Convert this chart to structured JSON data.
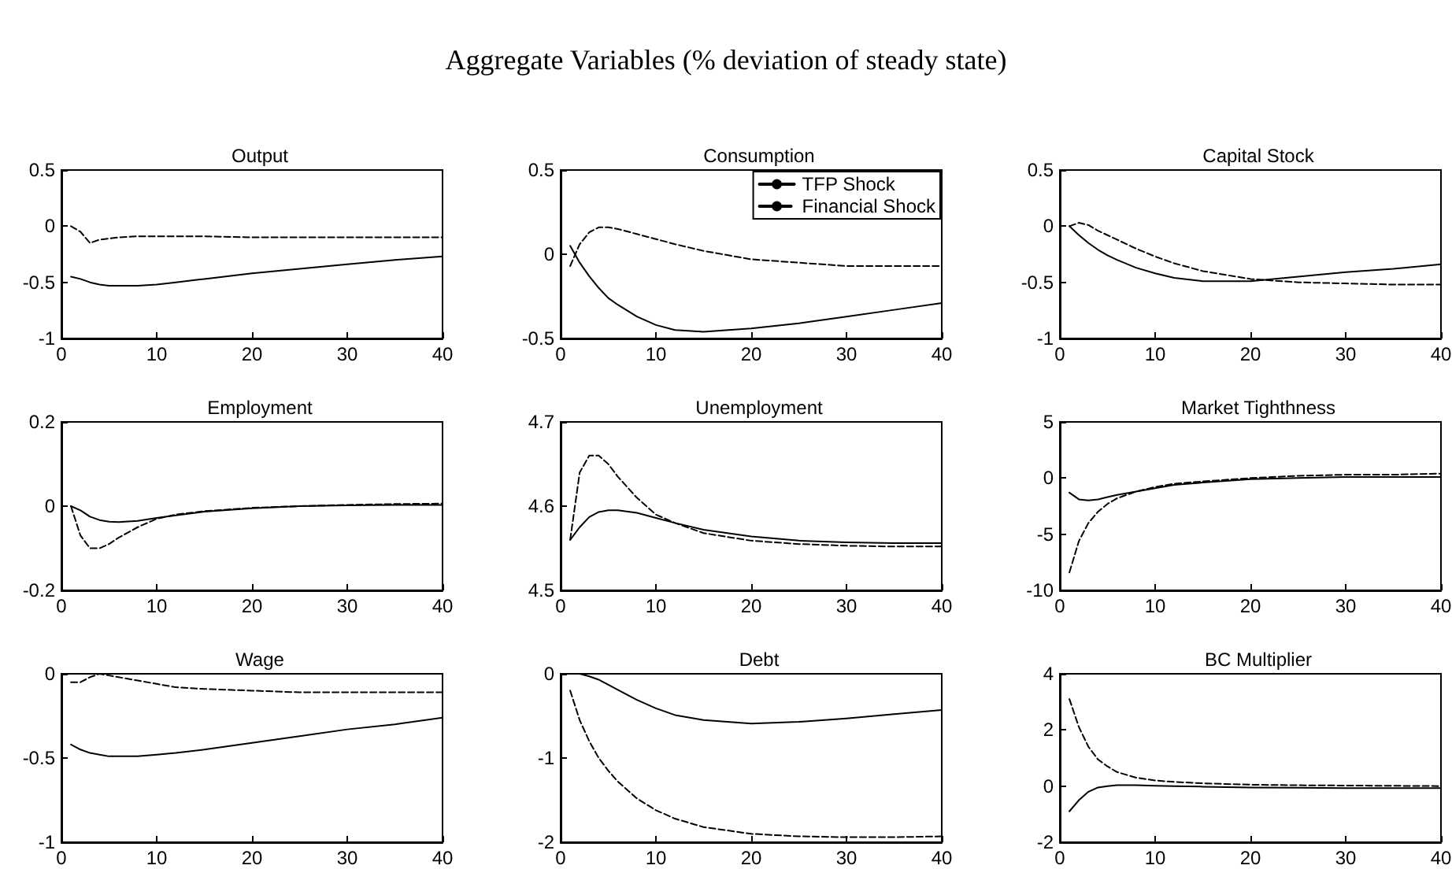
{
  "chart_data": [
    {
      "type": "line",
      "title": "Output",
      "annotations": [
        "Aggregate Variables (% deviation of steady state)"
      ],
      "x": [
        1,
        2,
        3,
        4,
        5,
        6,
        8,
        10,
        12,
        15,
        20,
        25,
        30,
        35,
        40
      ],
      "xlim": [
        0,
        40
      ],
      "xticks": [
        0,
        10,
        20,
        30,
        40
      ],
      "ylim": [
        -1,
        0.5
      ],
      "yticks": [
        -1,
        -0.5,
        0,
        0.5
      ],
      "grid": false,
      "legend": false,
      "marker": "none",
      "series": [
        {
          "color": "#000000",
          "line_style": "solid",
          "values": [
            -0.45,
            -0.47,
            -0.5,
            -0.52,
            -0.53,
            -0.53,
            -0.53,
            -0.52,
            -0.5,
            -0.47,
            -0.42,
            -0.38,
            -0.34,
            -0.3,
            -0.27
          ]
        },
        {
          "color": "#000000",
          "line_style": "dashed",
          "values": [
            0,
            -0.05,
            -0.15,
            -0.12,
            -0.11,
            -0.1,
            -0.09,
            -0.09,
            -0.09,
            -0.09,
            -0.1,
            -0.1,
            -0.1,
            -0.1,
            -0.1
          ]
        }
      ]
    },
    {
      "type": "line",
      "title": "Consumption",
      "x": [
        1,
        2,
        3,
        4,
        5,
        6,
        8,
        10,
        12,
        15,
        20,
        25,
        30,
        35,
        40
      ],
      "xlim": [
        0,
        40
      ],
      "xticks": [
        0,
        10,
        20,
        30,
        40
      ],
      "ylim": [
        -0.5,
        0.5
      ],
      "yticks": [
        -0.5,
        0,
        0.5
      ],
      "grid": false,
      "legend": "top right",
      "marker": "none",
      "series": [
        {
          "name": "TFP Shock",
          "color": "#000000",
          "line_style": "solid",
          "values": [
            0.05,
            -0.05,
            -0.13,
            -0.2,
            -0.26,
            -0.3,
            -0.37,
            -0.42,
            -0.45,
            -0.46,
            -0.44,
            -0.41,
            -0.37,
            -0.33,
            -0.29
          ]
        },
        {
          "name": "Financial Shock",
          "color": "#000000",
          "line_style": "dashed",
          "values": [
            -0.07,
            0.06,
            0.13,
            0.16,
            0.16,
            0.15,
            0.12,
            0.09,
            0.06,
            0.02,
            -0.03,
            -0.05,
            -0.07,
            -0.07,
            -0.07
          ]
        }
      ]
    },
    {
      "type": "line",
      "title": "Capital Stock",
      "x": [
        1,
        2,
        3,
        4,
        5,
        6,
        8,
        10,
        12,
        15,
        20,
        25,
        30,
        35,
        40
      ],
      "xlim": [
        0,
        40
      ],
      "xticks": [
        0,
        10,
        20,
        30,
        40
      ],
      "ylim": [
        -1,
        0.5
      ],
      "yticks": [
        -1,
        -0.5,
        0,
        0.5
      ],
      "grid": false,
      "legend": false,
      "marker": "none",
      "series": [
        {
          "color": "#000000",
          "line_style": "solid",
          "values": [
            0,
            -0.08,
            -0.15,
            -0.21,
            -0.26,
            -0.3,
            -0.37,
            -0.42,
            -0.46,
            -0.49,
            -0.49,
            -0.45,
            -0.41,
            -0.38,
            -0.34
          ]
        },
        {
          "color": "#000000",
          "line_style": "dashed",
          "values": [
            0,
            0.03,
            0.01,
            -0.04,
            -0.08,
            -0.12,
            -0.2,
            -0.27,
            -0.33,
            -0.4,
            -0.47,
            -0.5,
            -0.51,
            -0.52,
            -0.52
          ]
        }
      ]
    },
    {
      "type": "line",
      "title": "Employment",
      "x": [
        1,
        2,
        3,
        4,
        5,
        6,
        8,
        10,
        12,
        15,
        20,
        25,
        30,
        35,
        40
      ],
      "xlim": [
        0,
        40
      ],
      "xticks": [
        0,
        10,
        20,
        30,
        40
      ],
      "ylim": [
        -0.2,
        0.2
      ],
      "yticks": [
        -0.2,
        0,
        0.2
      ],
      "grid": false,
      "legend": false,
      "marker": "none",
      "series": [
        {
          "color": "#000000",
          "line_style": "solid",
          "values": [
            0,
            -0.01,
            -0.025,
            -0.033,
            -0.037,
            -0.038,
            -0.035,
            -0.028,
            -0.022,
            -0.013,
            -0.005,
            0,
            0.002,
            0.003,
            0.003
          ]
        },
        {
          "color": "#000000",
          "line_style": "dashed",
          "values": [
            0,
            -0.07,
            -0.1,
            -0.1,
            -0.09,
            -0.075,
            -0.05,
            -0.03,
            -0.02,
            -0.012,
            -0.004,
            0,
            0.003,
            0.005,
            0.006
          ]
        }
      ]
    },
    {
      "type": "line",
      "title": "Unemployment",
      "x": [
        1,
        2,
        3,
        4,
        5,
        6,
        8,
        10,
        12,
        15,
        20,
        25,
        30,
        35,
        40
      ],
      "xlim": [
        0,
        40
      ],
      "xticks": [
        0,
        10,
        20,
        30,
        40
      ],
      "ylim": [
        4.5,
        4.7
      ],
      "yticks": [
        4.5,
        4.6,
        4.7
      ],
      "grid": false,
      "legend": false,
      "marker": "none",
      "series": [
        {
          "color": "#000000",
          "line_style": "solid",
          "values": [
            4.56,
            4.575,
            4.587,
            4.593,
            4.595,
            4.595,
            4.592,
            4.586,
            4.58,
            4.572,
            4.564,
            4.559,
            4.557,
            4.556,
            4.556
          ]
        },
        {
          "color": "#000000",
          "line_style": "dashed",
          "values": [
            4.56,
            4.64,
            4.66,
            4.66,
            4.65,
            4.635,
            4.61,
            4.59,
            4.58,
            4.568,
            4.559,
            4.555,
            4.553,
            4.552,
            4.552
          ]
        }
      ]
    },
    {
      "type": "line",
      "title": "Market Tighthness",
      "x": [
        1,
        2,
        3,
        4,
        5,
        6,
        8,
        10,
        12,
        15,
        20,
        25,
        30,
        35,
        40
      ],
      "xlim": [
        0,
        40
      ],
      "xticks": [
        0,
        10,
        20,
        30,
        40
      ],
      "ylim": [
        -10,
        5
      ],
      "yticks": [
        -10,
        -5,
        0,
        5
      ],
      "grid": false,
      "legend": false,
      "marker": "none",
      "series": [
        {
          "color": "#000000",
          "line_style": "solid",
          "values": [
            -1.3,
            -1.9,
            -2,
            -1.9,
            -1.7,
            -1.5,
            -1.2,
            -0.9,
            -0.6,
            -0.4,
            -0.1,
            0,
            0.1,
            0.1,
            0.1
          ]
        },
        {
          "color": "#000000",
          "line_style": "dashed",
          "values": [
            -8.4,
            -5.6,
            -4,
            -3,
            -2.3,
            -1.8,
            -1.2,
            -0.8,
            -0.5,
            -0.3,
            0,
            0.2,
            0.3,
            0.3,
            0.4
          ]
        }
      ]
    },
    {
      "type": "line",
      "title": "Wage",
      "x": [
        1,
        2,
        3,
        4,
        5,
        6,
        8,
        10,
        12,
        15,
        20,
        25,
        30,
        35,
        40
      ],
      "xlim": [
        0,
        40
      ],
      "xticks": [
        0,
        10,
        20,
        30,
        40
      ],
      "ylim": [
        -1,
        0
      ],
      "yticks": [
        -1,
        -0.5,
        0
      ],
      "grid": false,
      "legend": false,
      "marker": "none",
      "series": [
        {
          "color": "#000000",
          "line_style": "solid",
          "values": [
            -0.42,
            -0.45,
            -0.47,
            -0.48,
            -0.49,
            -0.49,
            -0.49,
            -0.48,
            -0.47,
            -0.45,
            -0.41,
            -0.37,
            -0.33,
            -0.3,
            -0.26
          ]
        },
        {
          "color": "#000000",
          "line_style": "dashed",
          "values": [
            -0.05,
            -0.05,
            -0.02,
            0,
            -0.01,
            -0.02,
            -0.04,
            -0.06,
            -0.08,
            -0.09,
            -0.1,
            -0.11,
            -0.11,
            -0.11,
            -0.11
          ]
        }
      ]
    },
    {
      "type": "line",
      "title": "Debt",
      "x": [
        1,
        2,
        3,
        4,
        5,
        6,
        8,
        10,
        12,
        15,
        20,
        25,
        30,
        35,
        40
      ],
      "xlim": [
        0,
        40
      ],
      "xticks": [
        0,
        10,
        20,
        30,
        40
      ],
      "ylim": [
        -2,
        0
      ],
      "yticks": [
        -2,
        -1,
        0
      ],
      "grid": false,
      "legend": false,
      "marker": "none",
      "series": [
        {
          "color": "#000000",
          "line_style": "solid",
          "values": [
            0,
            0,
            -0.03,
            -0.07,
            -0.13,
            -0.19,
            -0.31,
            -0.41,
            -0.49,
            -0.55,
            -0.59,
            -0.57,
            -0.53,
            -0.48,
            -0.43
          ]
        },
        {
          "color": "#000000",
          "line_style": "dashed",
          "values": [
            -0.2,
            -0.55,
            -0.8,
            -1,
            -1.15,
            -1.28,
            -1.48,
            -1.62,
            -1.72,
            -1.82,
            -1.9,
            -1.93,
            -1.94,
            -1.94,
            -1.93
          ]
        }
      ]
    },
    {
      "type": "line",
      "title": "BC Multiplier",
      "x": [
        1,
        2,
        3,
        4,
        5,
        6,
        8,
        10,
        12,
        15,
        20,
        25,
        30,
        35,
        40
      ],
      "xlim": [
        0,
        40
      ],
      "xticks": [
        0,
        10,
        20,
        30,
        40
      ],
      "ylim": [
        -2,
        4
      ],
      "yticks": [
        -2,
        0,
        2,
        4
      ],
      "grid": false,
      "legend": false,
      "marker": "none",
      "series": [
        {
          "color": "#000000",
          "line_style": "solid",
          "values": [
            -0.9,
            -0.5,
            -0.2,
            -0.05,
            0,
            0.03,
            0.03,
            0.01,
            0,
            -0.02,
            -0.05,
            -0.06,
            -0.07,
            -0.07,
            -0.07
          ]
        },
        {
          "color": "#000000",
          "line_style": "dashed",
          "values": [
            3.1,
            2.1,
            1.4,
            0.95,
            0.7,
            0.5,
            0.3,
            0.2,
            0.15,
            0.1,
            0.05,
            0.03,
            0.02,
            0.01,
            0
          ]
        }
      ]
    }
  ]
}
